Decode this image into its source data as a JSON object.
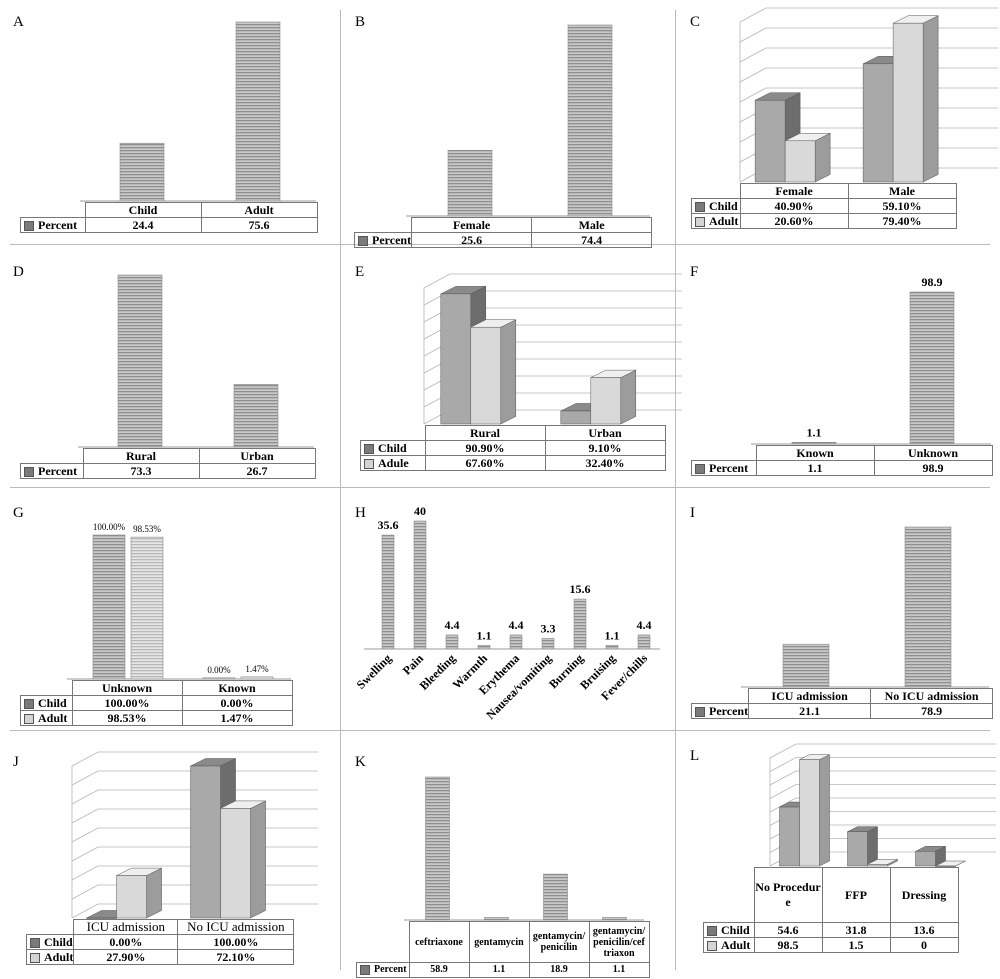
{
  "colors": {
    "bar_stripe": "#8f8f8f",
    "bar_light": "#d9d9d9",
    "bar_dark": "#a9a9a9",
    "axis": "#999999"
  },
  "panels": {
    "A": {
      "label": "A",
      "chart_data": {
        "type": "bar",
        "categories": [
          "Child",
          "Adult"
        ],
        "series": [
          {
            "name": "Percent",
            "values": [
              24.4,
              75.6
            ]
          }
        ],
        "table": [
          [
            "24.4",
            "75.6"
          ]
        ]
      }
    },
    "B": {
      "label": "B",
      "chart_data": {
        "type": "bar",
        "categories": [
          "Female",
          "Male"
        ],
        "series": [
          {
            "name": "Percent",
            "values": [
              25.6,
              74.4
            ]
          }
        ],
        "table": [
          [
            "25.6",
            "74.4"
          ]
        ]
      }
    },
    "C": {
      "label": "C",
      "chart_data": {
        "type": "bar",
        "style": "3d",
        "categories": [
          "Female",
          "Male"
        ],
        "series": [
          {
            "name": "Child",
            "values": [
              40.9,
              59.1
            ]
          },
          {
            "name": "Adult",
            "values": [
              20.6,
              79.4
            ]
          }
        ],
        "table": [
          [
            "40.90%",
            "59.10%"
          ],
          [
            "20.60%",
            "79.40%"
          ]
        ]
      }
    },
    "D": {
      "label": "D",
      "chart_data": {
        "type": "bar",
        "categories": [
          "Rural",
          "Urban"
        ],
        "series": [
          {
            "name": "Percent",
            "values": [
              73.3,
              26.7
            ]
          }
        ],
        "table": [
          [
            "73.3",
            "26.7"
          ]
        ]
      }
    },
    "E": {
      "label": "E",
      "chart_data": {
        "type": "bar",
        "style": "3d",
        "categories": [
          "Rural",
          "Urban"
        ],
        "series": [
          {
            "name": "Child",
            "values": [
              90.9,
              9.1
            ]
          },
          {
            "name": "Adule",
            "values": [
              67.6,
              32.4
            ]
          }
        ],
        "table": [
          [
            "90.90%",
            "9.10%"
          ],
          [
            "67.60%",
            "32.40%"
          ]
        ]
      }
    },
    "F": {
      "label": "F",
      "chart_data": {
        "type": "bar",
        "categories": [
          "Known",
          "Unknown"
        ],
        "series": [
          {
            "name": "Percent",
            "values": [
              1.1,
              98.9
            ]
          }
        ],
        "data_labels": [
          "1.1",
          "98.9"
        ],
        "table": [
          [
            "1.1",
            "98.9"
          ]
        ]
      }
    },
    "G": {
      "label": "G",
      "chart_data": {
        "type": "bar",
        "categories": [
          "Unknown",
          "Known"
        ],
        "series": [
          {
            "name": "Child",
            "values": [
              100.0,
              0.0
            ]
          },
          {
            "name": "Adult",
            "values": [
              98.53,
              1.47
            ]
          }
        ],
        "data_labels": [
          [
            "100.00%",
            "0.00%"
          ],
          [
            "98.53%",
            "1.47%"
          ]
        ],
        "table": [
          [
            "100.00%",
            "0.00%"
          ],
          [
            "98.53%",
            "1.47%"
          ]
        ]
      }
    },
    "H": {
      "label": "H",
      "chart_data": {
        "type": "bar",
        "categories": [
          "Swelling",
          "Pain",
          "Bleeding",
          "Warmth",
          "Erythema",
          "Nausea/vomiting",
          "Burning",
          "Bruising",
          "Fever/chills"
        ],
        "values": [
          35.6,
          40,
          4.4,
          1.1,
          4.4,
          3.3,
          15.6,
          1.1,
          4.4
        ],
        "data_labels": [
          "35.6",
          "40",
          "4.4",
          "1.1",
          "4.4",
          "3.3",
          "15.6",
          "1.1",
          "4.4"
        ]
      }
    },
    "I": {
      "label": "I",
      "chart_data": {
        "type": "bar",
        "categories": [
          "ICU admission",
          "No ICU admission"
        ],
        "series": [
          {
            "name": "Percent",
            "values": [
              21.1,
              78.9
            ]
          }
        ],
        "table": [
          [
            "21.1",
            "78.9"
          ]
        ]
      }
    },
    "J": {
      "label": "J",
      "chart_data": {
        "type": "bar",
        "style": "3d",
        "categories": [
          "ICU admission",
          "No ICU admission"
        ],
        "series": [
          {
            "name": "Child",
            "values": [
              0.0,
              100.0
            ]
          },
          {
            "name": "Adult",
            "values": [
              27.9,
              72.1
            ]
          }
        ],
        "table": [
          [
            "0.00%",
            "100.00%"
          ],
          [
            "27.90%",
            "72.10%"
          ]
        ]
      }
    },
    "K": {
      "label": "K",
      "chart_data": {
        "type": "bar",
        "categories": [
          "ceftriaxone",
          "gentamycin",
          "gentamycin/ penicilin",
          "gentamycin/ penicilin/cef triaxon"
        ],
        "series": [
          {
            "name": "Percent",
            "values": [
              58.9,
              1.1,
              18.9,
              1.1
            ]
          }
        ],
        "table": [
          [
            "58.9",
            "1.1",
            "18.9",
            "1.1"
          ]
        ]
      }
    },
    "L": {
      "label": "L",
      "chart_data": {
        "type": "bar",
        "style": "3d",
        "categories": [
          "No Procedur e",
          "FFP",
          "Dressing"
        ],
        "series": [
          {
            "name": "Child",
            "values": [
              54.6,
              31.8,
              13.6
            ]
          },
          {
            "name": "Adult",
            "values": [
              98.5,
              1.5,
              0
            ]
          }
        ],
        "table": [
          [
            "54.6",
            "31.8",
            "13.6"
          ],
          [
            "98.5",
            "1.5",
            "0"
          ]
        ]
      }
    }
  }
}
